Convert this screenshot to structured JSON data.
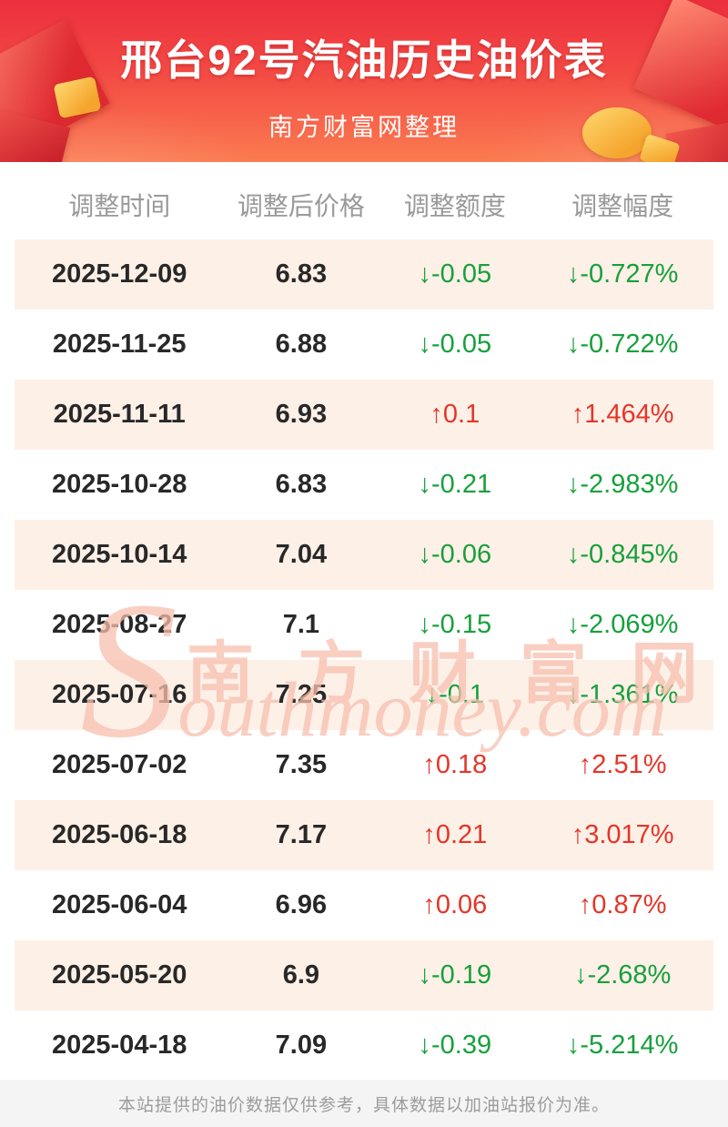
{
  "header": {
    "title": "邢台92号汽油历史油价表",
    "subtitle": "南方财富网整理"
  },
  "table": {
    "columns": [
      "调整时间",
      "调整后价格",
      "调整额度",
      "调整幅度"
    ],
    "rows": [
      {
        "date": "2025-12-09",
        "price": "6.83",
        "change": "↓-0.05",
        "percent": "↓-0.727%",
        "direction": "down"
      },
      {
        "date": "2025-11-25",
        "price": "6.88",
        "change": "↓-0.05",
        "percent": "↓-0.722%",
        "direction": "down"
      },
      {
        "date": "2025-11-11",
        "price": "6.93",
        "change": "↑0.1",
        "percent": "↑1.464%",
        "direction": "up"
      },
      {
        "date": "2025-10-28",
        "price": "6.83",
        "change": "↓-0.21",
        "percent": "↓-2.983%",
        "direction": "down"
      },
      {
        "date": "2025-10-14",
        "price": "7.04",
        "change": "↓-0.06",
        "percent": "↓-0.845%",
        "direction": "down"
      },
      {
        "date": "2025-08-27",
        "price": "7.1",
        "change": "↓-0.15",
        "percent": "↓-2.069%",
        "direction": "down"
      },
      {
        "date": "2025-07-16",
        "price": "7.25",
        "change": "↓-0.1",
        "percent": "↓-1.361%",
        "direction": "down"
      },
      {
        "date": "2025-07-02",
        "price": "7.35",
        "change": "↑0.18",
        "percent": "↑2.51%",
        "direction": "up"
      },
      {
        "date": "2025-06-18",
        "price": "7.17",
        "change": "↑0.21",
        "percent": "↑3.017%",
        "direction": "up"
      },
      {
        "date": "2025-06-04",
        "price": "6.96",
        "change": "↑0.06",
        "percent": "↑0.87%",
        "direction": "up"
      },
      {
        "date": "2025-05-20",
        "price": "6.9",
        "change": "↓-0.19",
        "percent": "↓-2.68%",
        "direction": "down"
      },
      {
        "date": "2025-04-18",
        "price": "7.09",
        "change": "↓-0.39",
        "percent": "↓-5.214%",
        "direction": "down"
      }
    ]
  },
  "watermark": {
    "cn": "南方财富网",
    "en": "Southmoney.com"
  },
  "footer": {
    "disclaimer": "本站提供的油价数据仅供参考，具体数据以加油站报价为准。"
  },
  "colors": {
    "hero_top": "#ec2f3e",
    "hero_bottom": "#fb7b50",
    "up": "#e53529",
    "down": "#17a03c",
    "stripe": "#fdf0e7",
    "text_dark": "#282828",
    "header_text": "#999999",
    "watermark": "#f7bfae",
    "footer_bg": "#f4f4f4",
    "footer_text": "#9c9c9c"
  }
}
